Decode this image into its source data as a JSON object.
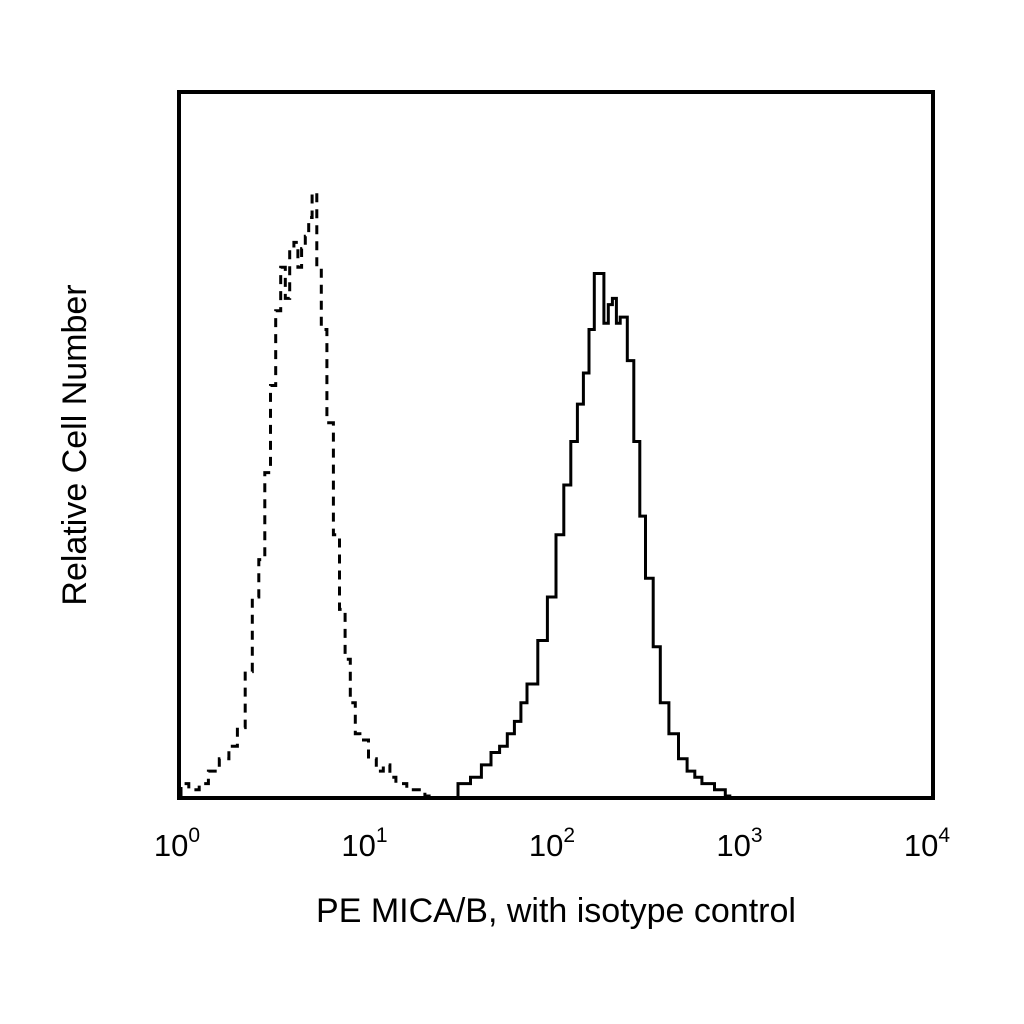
{
  "chart_data": {
    "type": "line",
    "xlabel": "PE MICA/B, with isotype control",
    "ylabel": "Relative Cell Number",
    "x_scale": "log",
    "xlim": [
      1,
      10000
    ],
    "ylim": [
      0,
      100
    ],
    "grid": false,
    "legend": "none",
    "x_ticks": [
      {
        "base": "10",
        "exp": "0",
        "value": 1
      },
      {
        "base": "10",
        "exp": "1",
        "value": 10
      },
      {
        "base": "10",
        "exp": "2",
        "value": 100
      },
      {
        "base": "10",
        "exp": "3",
        "value": 1000
      },
      {
        "base": "10",
        "exp": "4",
        "value": 10000
      }
    ],
    "series": [
      {
        "style": "dashed",
        "x": [
          1.0,
          1.1,
          1.25,
          1.4,
          1.6,
          1.8,
          2.0,
          2.2,
          2.4,
          2.6,
          2.8,
          3.0,
          3.2,
          3.4,
          3.6,
          3.8,
          4.0,
          4.2,
          4.4,
          4.6,
          4.8,
          5.0,
          5.3,
          5.6,
          6.0,
          6.5,
          7.0,
          7.5,
          8.0,
          8.5,
          9.0,
          10.0,
          11.0,
          12.0,
          13.0,
          14.0,
          16.0,
          20.0
        ],
        "y": [
          2,
          1,
          2,
          4,
          6,
          8,
          11,
          20,
          32,
          38,
          52,
          66,
          78,
          85,
          80,
          88,
          89,
          85,
          88,
          90,
          93,
          97,
          85,
          75,
          60,
          42,
          30,
          22,
          15,
          10,
          9,
          6,
          4,
          5,
          3,
          2,
          1,
          0
        ]
      },
      {
        "style": "solid",
        "x": [
          30,
          35,
          40,
          45,
          50,
          55,
          60,
          65,
          70,
          80,
          90,
          100,
          110,
          120,
          130,
          140,
          150,
          160,
          170,
          180,
          190,
          200,
          210,
          220,
          240,
          260,
          280,
          300,
          330,
          360,
          400,
          450,
          500,
          550,
          600,
          700,
          800
        ],
        "y": [
          2,
          3,
          5,
          7,
          8,
          10,
          12,
          15,
          18,
          25,
          32,
          42,
          50,
          57,
          63,
          68,
          75,
          84,
          84,
          76,
          79,
          80,
          76,
          77,
          70,
          57,
          45,
          35,
          24,
          15,
          10,
          6,
          4,
          3,
          2,
          1,
          0
        ]
      }
    ]
  }
}
